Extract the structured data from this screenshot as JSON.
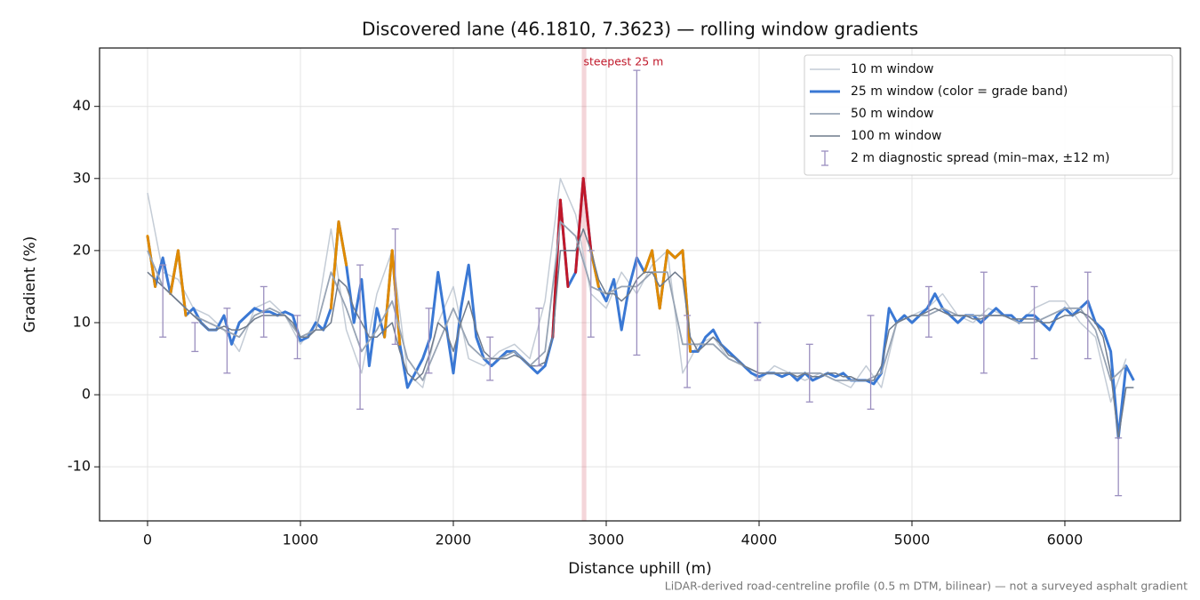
{
  "chart_data": {
    "type": "line",
    "title": "Discovered lane (46.1810, 7.3623) — rolling window gradients",
    "xlabel": "Distance uphill (m)",
    "ylabel": "Gradient (%)",
    "footnote": "LiDAR-derived road-centreline profile (0.5 m DTM, bilinear) — not a surveyed asphalt gradient",
    "xlim": [
      -314,
      6756
    ],
    "ylim": [
      -17.5,
      48.1
    ],
    "xticks": [
      0,
      1000,
      2000,
      3000,
      4000,
      5000,
      6000
    ],
    "yticks": [
      -10,
      0,
      10,
      20,
      30,
      40
    ],
    "grid": true,
    "legend": "upper right",
    "x": [
      0,
      50,
      100,
      150,
      200,
      250,
      300,
      350,
      400,
      450,
      500,
      550,
      600,
      650,
      700,
      750,
      800,
      850,
      900,
      950,
      1000,
      1050,
      1100,
      1150,
      1200,
      1250,
      1300,
      1350,
      1400,
      1450,
      1500,
      1550,
      1600,
      1650,
      1700,
      1750,
      1800,
      1850,
      1900,
      1950,
      2000,
      2050,
      2100,
      2150,
      2200,
      2250,
      2300,
      2350,
      2400,
      2450,
      2500,
      2550,
      2600,
      2650,
      2700,
      2750,
      2800,
      2850,
      2900,
      2950,
      3000,
      3050,
      3100,
      3150,
      3200,
      3250,
      3300,
      3350,
      3400,
      3450,
      3500,
      3550,
      3600,
      3650,
      3700,
      3750,
      3800,
      3850,
      3900,
      3950,
      4000,
      4050,
      4100,
      4150,
      4200,
      4250,
      4300,
      4350,
      4400,
      4450,
      4500,
      4550,
      4600,
      4650,
      4700,
      4750,
      4800,
      4850,
      4900,
      4950,
      5000,
      5050,
      5100,
      5150,
      5200,
      5250,
      5300,
      5350,
      5400,
      5450,
      5500,
      5550,
      5600,
      5650,
      5700,
      5750,
      5800,
      5850,
      5900,
      5950,
      6000,
      6050,
      6100,
      6150,
      6200,
      6250,
      6300,
      6350,
      6400,
      6450
    ],
    "series": [
      {
        "name": "10 m window",
        "color": "#c4ccd6",
        "width": 1.5,
        "x": [
          0,
          100,
          200,
          300,
          400,
          500,
          600,
          700,
          800,
          900,
          1000,
          1100,
          1200,
          1300,
          1400,
          1500,
          1600,
          1700,
          1800,
          1900,
          2000,
          2100,
          2200,
          2300,
          2400,
          2500,
          2600,
          2700,
          2800,
          2900,
          3000,
          3100,
          3200,
          3300,
          3400,
          3500,
          3600,
          3700,
          3800,
          3900,
          4000,
          4100,
          4200,
          4300,
          4400,
          4500,
          4600,
          4700,
          4800,
          4900,
          5000,
          5100,
          5200,
          5300,
          5400,
          5500,
          5600,
          5700,
          5800,
          5900,
          6000,
          6100,
          6200,
          6300,
          6400
        ],
        "values": [
          28,
          17,
          16,
          12,
          11,
          9,
          6,
          12,
          13,
          11,
          7,
          10,
          23,
          9,
          3,
          14,
          20,
          3,
          1,
          10,
          15,
          5,
          4,
          6,
          7,
          5,
          13,
          30,
          25,
          14,
          12,
          17,
          14,
          18,
          20,
          3,
          7,
          8,
          5,
          4,
          2,
          4,
          3,
          2,
          3,
          2,
          1,
          4,
          1,
          10,
          11,
          12,
          14,
          11,
          10,
          12,
          11,
          10,
          12,
          13,
          13,
          10,
          8,
          -1,
          5
        ]
      },
      {
        "name": "25 m window (color = grade band)",
        "color": "#3a78d4",
        "width": 3,
        "bands": [
          {
            "min": 20,
            "color": "#e08a00"
          },
          {
            "min": 25,
            "color": "#c0182a"
          }
        ],
        "values": [
          22,
          15,
          19,
          14,
          20,
          11,
          12,
          10,
          9,
          9,
          11,
          7,
          10,
          11,
          12,
          11.5,
          11.5,
          11,
          11.5,
          11,
          7.5,
          8,
          10,
          9,
          12,
          24,
          18,
          10,
          16,
          4,
          12,
          8,
          20,
          7,
          1,
          3,
          5,
          8,
          17,
          10,
          3,
          12,
          18,
          8,
          5,
          4,
          5,
          6,
          6,
          5,
          4,
          3,
          4,
          8,
          27,
          15,
          17,
          30,
          20,
          15,
          13,
          16,
          9,
          15,
          19,
          17,
          20,
          12,
          20,
          19,
          20,
          6,
          6,
          8,
          9,
          7,
          6,
          5,
          4,
          3,
          2.5,
          3,
          3,
          2.5,
          3,
          2,
          3,
          2,
          2.5,
          3,
          2.5,
          3,
          2,
          2,
          2,
          1.5,
          3,
          12,
          10,
          11,
          10,
          11,
          12,
          14,
          12,
          11,
          10,
          11,
          11,
          10,
          11,
          12,
          11,
          11,
          10,
          11,
          11,
          10,
          9,
          11,
          12,
          11,
          12,
          13,
          10,
          9,
          6,
          -6,
          4,
          2
        ]
      },
      {
        "name": "50 m window",
        "color": "#98a4b4",
        "width": 1.8,
        "x": [
          0,
          100,
          200,
          300,
          400,
          500,
          600,
          700,
          800,
          900,
          1000,
          1100,
          1200,
          1300,
          1400,
          1500,
          1600,
          1700,
          1800,
          1900,
          2000,
          2100,
          2200,
          2300,
          2400,
          2500,
          2600,
          2700,
          2800,
          2900,
          3000,
          3100,
          3200,
          3300,
          3400,
          3500,
          3600,
          3700,
          3800,
          3900,
          4000,
          4100,
          4200,
          4300,
          4400,
          4500,
          4600,
          4700,
          4800,
          4900,
          5000,
          5100,
          5200,
          5300,
          5400,
          5500,
          5600,
          5700,
          5800,
          5900,
          6000,
          6100,
          6200,
          6300,
          6400
        ],
        "values": [
          20,
          15,
          13,
          11,
          10,
          9,
          8,
          11,
          12,
          11,
          8,
          9,
          17,
          12,
          6,
          9,
          13,
          5,
          2,
          7,
          12,
          7,
          5,
          5,
          6,
          4,
          6,
          24,
          22,
          15,
          14,
          15,
          15,
          17,
          17,
          7,
          7,
          7,
          5,
          4,
          3,
          3,
          3,
          3,
          3,
          2,
          2,
          2,
          3,
          10,
          11,
          11,
          12,
          11,
          11,
          11,
          11,
          10,
          10,
          11,
          12,
          12,
          9,
          2,
          4
        ]
      },
      {
        "name": "100 m window",
        "color": "#6f7b8c",
        "width": 1.5,
        "values": [
          17,
          16,
          15,
          14,
          13,
          12,
          11,
          10,
          9,
          9,
          9.5,
          9,
          9,
          9.5,
          10.5,
          11,
          11,
          11,
          11,
          10,
          8,
          8,
          9,
          9,
          10,
          16,
          15,
          12,
          10,
          8,
          8,
          9,
          10,
          6,
          3,
          2,
          3,
          6,
          10,
          9,
          6,
          10,
          13,
          9,
          6,
          5,
          5,
          5,
          5.5,
          5,
          4,
          4,
          4.5,
          8,
          20,
          20,
          20,
          23,
          20,
          16,
          14,
          14,
          13,
          14,
          16,
          17,
          17,
          15,
          16,
          17,
          16,
          8,
          6,
          7,
          8,
          7,
          5.5,
          5,
          4,
          3.5,
          3,
          3,
          3,
          3,
          3,
          2.5,
          3,
          2.5,
          2.5,
          3,
          3,
          2.5,
          2.5,
          2,
          2,
          2,
          4,
          9,
          10,
          10.5,
          11,
          11,
          11.5,
          12,
          11.5,
          11,
          11,
          11,
          10.5,
          10.5,
          11,
          11,
          11,
          10.5,
          10.5,
          10.5,
          10.5,
          10,
          10,
          10.5,
          11,
          11,
          11.5,
          11,
          10,
          8,
          3,
          -6,
          1,
          1
        ]
      }
    ],
    "errorbars": {
      "name": "2 m diagnostic spread (min–max, ±12 m)",
      "color": "#9b8fbf",
      "x": [
        100,
        310,
        520,
        760,
        980,
        1390,
        1620,
        1840,
        2240,
        2560,
        2900,
        3200,
        3530,
        3990,
        4330,
        4730,
        5110,
        5470,
        5800,
        6150,
        6350
      ],
      "low": [
        8,
        6,
        3,
        8,
        5,
        -2,
        7,
        3,
        2,
        4,
        8,
        5.5,
        1,
        2,
        -1,
        -2,
        8,
        3,
        5,
        5,
        -14
      ],
      "high": [
        18,
        10,
        12,
        15,
        11,
        18,
        23,
        12,
        8,
        12,
        20,
        45,
        11,
        10,
        7,
        11,
        15,
        17,
        15,
        17,
        -6
      ]
    },
    "highlight": {
      "text": "steepest 25 m",
      "x": [
        2840,
        2870
      ],
      "color": "#c0182a"
    }
  }
}
